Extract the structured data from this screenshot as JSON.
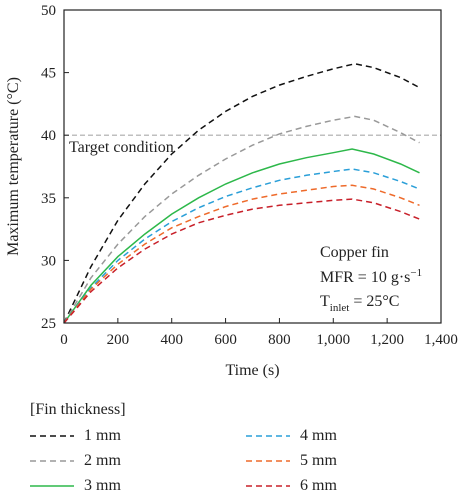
{
  "chart_data": {
    "type": "line",
    "xlabel": "Time (s)",
    "ylabel": "Maximum temperature (°C)",
    "xlim": [
      0,
      1400
    ],
    "ylim": [
      25,
      50
    ],
    "xticks": [
      0,
      200,
      400,
      600,
      800,
      1000,
      1200,
      1400
    ],
    "xtick_labels": [
      "0",
      "200",
      "400",
      "600",
      "800",
      "1,000",
      "1,200",
      "1,400"
    ],
    "yticks": [
      25,
      30,
      35,
      40,
      45,
      50
    ],
    "ytick_labels": [
      "25",
      "30",
      "35",
      "40",
      "45",
      "50"
    ],
    "grid": false,
    "reference_line": {
      "y": 40,
      "label": "Target condition",
      "color": "#aaaaaa"
    },
    "annotations": {
      "line1": "Copper fin",
      "line2_prefix": "MFR = 10 g·s",
      "line2_sup": "−1",
      "line3_main": "T",
      "line3_sub": "inlet",
      "line3_rest": " = 25°C"
    },
    "legend_title": "[Fin thickness]",
    "legend_placement": "bottom",
    "series": [
      {
        "name": "1 mm",
        "color": "#111111",
        "dash": "6,4",
        "x": [
          0,
          100,
          200,
          300,
          400,
          500,
          600,
          700,
          800,
          900,
          1000,
          1080,
          1150,
          1250,
          1320
        ],
        "y": [
          25,
          29.5,
          33.2,
          36.1,
          38.5,
          40.4,
          41.9,
          43.1,
          44.0,
          44.7,
          45.3,
          45.7,
          45.4,
          44.6,
          43.8
        ]
      },
      {
        "name": "2 mm",
        "color": "#999999",
        "dash": "6,4",
        "x": [
          0,
          100,
          200,
          300,
          400,
          500,
          600,
          700,
          800,
          900,
          1000,
          1080,
          1150,
          1250,
          1320
        ],
        "y": [
          25,
          28.6,
          31.3,
          33.5,
          35.3,
          36.8,
          38.1,
          39.2,
          40.1,
          40.7,
          41.2,
          41.5,
          41.2,
          40.2,
          39.4
        ]
      },
      {
        "name": "3 mm",
        "color": "#2db84a",
        "dash": "",
        "x": [
          0,
          100,
          200,
          300,
          400,
          500,
          600,
          700,
          800,
          900,
          1000,
          1070,
          1150,
          1250,
          1320
        ],
        "y": [
          25,
          28.0,
          30.3,
          32.1,
          33.7,
          35.0,
          36.1,
          37.0,
          37.7,
          38.2,
          38.6,
          38.9,
          38.5,
          37.7,
          37.0
        ]
      },
      {
        "name": "4 mm",
        "color": "#2a9fd8",
        "dash": "6,4",
        "x": [
          0,
          100,
          200,
          300,
          400,
          500,
          600,
          700,
          800,
          900,
          1000,
          1070,
          1150,
          1250,
          1320
        ],
        "y": [
          25,
          27.8,
          30.0,
          31.7,
          33.1,
          34.2,
          35.1,
          35.8,
          36.4,
          36.8,
          37.1,
          37.3,
          37.0,
          36.3,
          35.7
        ]
      },
      {
        "name": "5 mm",
        "color": "#ee6a2a",
        "dash": "6,4",
        "x": [
          0,
          100,
          200,
          300,
          400,
          500,
          600,
          700,
          800,
          900,
          1000,
          1070,
          1150,
          1250,
          1320
        ],
        "y": [
          25,
          27.7,
          29.7,
          31.3,
          32.6,
          33.5,
          34.3,
          34.9,
          35.3,
          35.6,
          35.9,
          36.0,
          35.7,
          35.0,
          34.4
        ]
      },
      {
        "name": "6 mm",
        "color": "#c8202a",
        "dash": "6,4",
        "x": [
          0,
          100,
          200,
          300,
          400,
          500,
          600,
          700,
          800,
          900,
          1000,
          1070,
          1150,
          1250,
          1320
        ],
        "y": [
          25,
          27.5,
          29.4,
          30.9,
          32.1,
          33.0,
          33.6,
          34.1,
          34.4,
          34.6,
          34.8,
          34.9,
          34.6,
          33.9,
          33.3
        ]
      }
    ]
  }
}
